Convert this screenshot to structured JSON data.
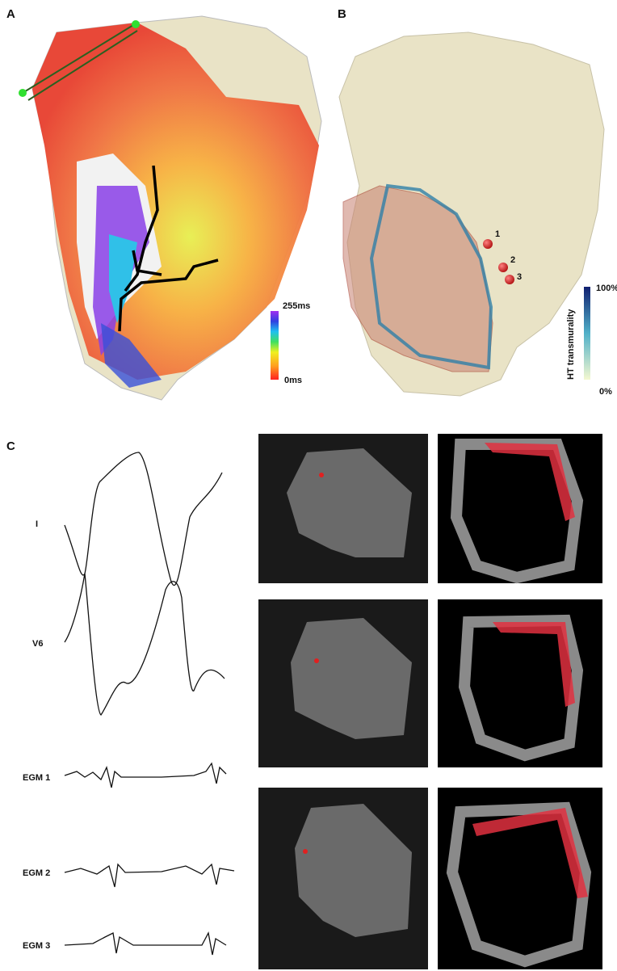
{
  "panels": {
    "a": {
      "label": "A",
      "colorbar": {
        "max": "255ms",
        "min": "0ms"
      }
    },
    "b": {
      "label": "B",
      "points": [
        "1",
        "2",
        "3"
      ],
      "colorbar": {
        "title": "HT transmurality",
        "max": "100%",
        "min": "0%"
      }
    },
    "c": {
      "label": "C",
      "traces": [
        "I",
        "V6",
        "EGM 1",
        "EGM 2",
        "EGM 3"
      ]
    }
  }
}
